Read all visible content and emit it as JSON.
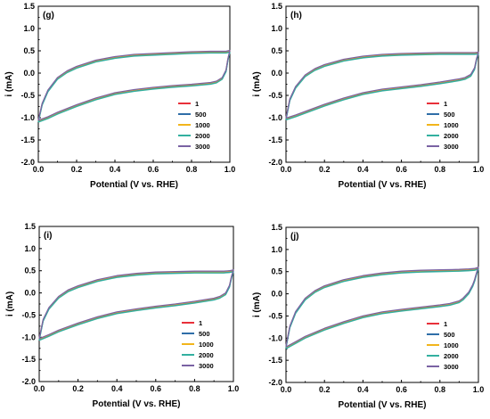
{
  "colors": {
    "1": "#e8303a",
    "500": "#2f6ea8",
    "1000": "#f2b51c",
    "2000": "#33b0a0",
    "3000": "#7a62a3"
  },
  "chart_data": [
    {
      "type": "line",
      "panel_label": "(g)",
      "xlabel": "Potential (V vs. RHE)",
      "ylabel": "i (mA)",
      "xlim": [
        0,
        1.0
      ],
      "ylim": [
        -2.0,
        1.5
      ],
      "xticks": [
        "0.0",
        "0.2",
        "0.4",
        "0.6",
        "0.8",
        "1.0"
      ],
      "yticks": [
        "-2.0",
        "-1.5",
        "-1.0",
        "-0.5",
        "0.0",
        "0.5",
        "1.0",
        "1.5"
      ],
      "legend_position": "lower-right",
      "grid": false,
      "series": [
        {
          "name": "1"
        },
        {
          "name": "500"
        },
        {
          "name": "1000"
        },
        {
          "name": "2000"
        },
        {
          "name": "3000"
        }
      ],
      "anodic_branch": {
        "x": [
          0.0,
          0.02,
          0.05,
          0.1,
          0.15,
          0.2,
          0.3,
          0.4,
          0.5,
          0.6,
          0.7,
          0.8,
          0.9,
          0.95,
          0.98,
          1.0
        ],
        "y": [
          -1.08,
          -0.7,
          -0.4,
          -0.12,
          0.03,
          0.13,
          0.27,
          0.35,
          0.4,
          0.42,
          0.44,
          0.46,
          0.47,
          0.47,
          0.47,
          0.49
        ]
      },
      "cathodic_branch": {
        "x": [
          1.0,
          0.99,
          0.98,
          0.96,
          0.93,
          0.9,
          0.8,
          0.7,
          0.6,
          0.5,
          0.4,
          0.3,
          0.2,
          0.1,
          0.05,
          0.0
        ],
        "y": [
          0.49,
          0.3,
          0.05,
          -0.12,
          -0.2,
          -0.23,
          -0.27,
          -0.3,
          -0.34,
          -0.39,
          -0.46,
          -0.58,
          -0.73,
          -0.9,
          -1.0,
          -1.08
        ]
      }
    },
    {
      "type": "line",
      "panel_label": "(h)",
      "xlabel": "Potential (V vs. RHE)",
      "ylabel": "i (mA)",
      "xlim": [
        0,
        1.0
      ],
      "ylim": [
        -2.0,
        1.5
      ],
      "xticks": [
        "0.0",
        "0.2",
        "0.4",
        "0.6",
        "0.8",
        "1.0"
      ],
      "yticks": [
        "-2.0",
        "-1.5",
        "-1.0",
        "-0.5",
        "0.0",
        "0.5",
        "1.0",
        "1.5"
      ],
      "legend_position": "lower-right",
      "grid": false,
      "series": [
        {
          "name": "1"
        },
        {
          "name": "500"
        },
        {
          "name": "1000"
        },
        {
          "name": "2000"
        },
        {
          "name": "3000"
        }
      ],
      "anodic_branch": {
        "x": [
          0.0,
          0.02,
          0.05,
          0.1,
          0.15,
          0.2,
          0.3,
          0.4,
          0.5,
          0.6,
          0.7,
          0.8,
          0.9,
          0.95,
          0.98,
          1.0
        ],
        "y": [
          -1.03,
          -0.6,
          -0.32,
          -0.06,
          0.08,
          0.17,
          0.29,
          0.36,
          0.4,
          0.42,
          0.43,
          0.44,
          0.44,
          0.44,
          0.44,
          0.45
        ]
      },
      "cathodic_branch": {
        "x": [
          1.0,
          0.99,
          0.98,
          0.96,
          0.93,
          0.9,
          0.8,
          0.7,
          0.6,
          0.5,
          0.4,
          0.3,
          0.2,
          0.1,
          0.05,
          0.0
        ],
        "y": [
          0.45,
          0.3,
          0.1,
          -0.05,
          -0.12,
          -0.15,
          -0.22,
          -0.28,
          -0.33,
          -0.38,
          -0.46,
          -0.58,
          -0.72,
          -0.88,
          -0.96,
          -1.03
        ]
      }
    },
    {
      "type": "line",
      "panel_label": "(i)",
      "xlabel": "Potential (V vs. RHE)",
      "ylabel": "i (mA)",
      "xlim": [
        0,
        1.0
      ],
      "ylim": [
        -2.0,
        1.5
      ],
      "xticks": [
        "0.0",
        "0.2",
        "0.4",
        "0.6",
        "0.8",
        "1.0"
      ],
      "yticks": [
        "-2.0",
        "-1.5",
        "-1.0",
        "-0.5",
        "0.0",
        "0.5",
        "1.0",
        "1.5"
      ],
      "legend_position": "lower-right",
      "grid": false,
      "series": [
        {
          "name": "1"
        },
        {
          "name": "500"
        },
        {
          "name": "1000"
        },
        {
          "name": "2000"
        },
        {
          "name": "3000"
        }
      ],
      "anodic_branch": {
        "x": [
          0.0,
          0.02,
          0.05,
          0.1,
          0.15,
          0.2,
          0.3,
          0.4,
          0.5,
          0.6,
          0.7,
          0.8,
          0.9,
          0.95,
          0.98,
          1.0
        ],
        "y": [
          -1.05,
          -0.62,
          -0.35,
          -0.1,
          0.05,
          0.14,
          0.28,
          0.37,
          0.42,
          0.45,
          0.46,
          0.47,
          0.47,
          0.47,
          0.48,
          0.5
        ]
      },
      "cathodic_branch": {
        "x": [
          1.0,
          0.99,
          0.98,
          0.96,
          0.93,
          0.9,
          0.8,
          0.7,
          0.6,
          0.5,
          0.4,
          0.3,
          0.2,
          0.1,
          0.05,
          0.0
        ],
        "y": [
          0.5,
          0.35,
          0.15,
          -0.02,
          -0.1,
          -0.14,
          -0.21,
          -0.27,
          -0.32,
          -0.38,
          -0.45,
          -0.56,
          -0.7,
          -0.86,
          -0.96,
          -1.05
        ]
      }
    },
    {
      "type": "line",
      "panel_label": "(j)",
      "xlabel": "Potential (V vs. RHE)",
      "ylabel": "i (mA)",
      "xlim": [
        0,
        1.0
      ],
      "ylim": [
        -2.0,
        1.5
      ],
      "xticks": [
        "0.0",
        "0.2",
        "0.4",
        "0.6",
        "0.8",
        "1.0"
      ],
      "yticks": [
        "-2.0",
        "-1.5",
        "-1.0",
        "-0.5",
        "0.0",
        "0.5",
        "1.0",
        "1.5"
      ],
      "legend_position": "lower-right",
      "grid": false,
      "series": [
        {
          "name": "1"
        },
        {
          "name": "500"
        },
        {
          "name": "1000"
        },
        {
          "name": "2000"
        },
        {
          "name": "3000"
        }
      ],
      "anodic_branch": {
        "x": [
          0.0,
          0.02,
          0.05,
          0.1,
          0.15,
          0.2,
          0.3,
          0.4,
          0.5,
          0.6,
          0.7,
          0.8,
          0.9,
          0.95,
          0.98,
          1.0
        ],
        "y": [
          -1.2,
          -0.75,
          -0.42,
          -0.12,
          0.05,
          0.16,
          0.3,
          0.39,
          0.45,
          0.49,
          0.51,
          0.52,
          0.53,
          0.54,
          0.55,
          0.58
        ]
      },
      "cathodic_branch": {
        "x": [
          1.0,
          0.99,
          0.98,
          0.97,
          0.95,
          0.92,
          0.9,
          0.85,
          0.8,
          0.7,
          0.6,
          0.5,
          0.4,
          0.3,
          0.2,
          0.1,
          0.05,
          0.0
        ],
        "y": [
          0.58,
          0.45,
          0.3,
          0.18,
          0.02,
          -0.12,
          -0.18,
          -0.24,
          -0.27,
          -0.32,
          -0.37,
          -0.43,
          -0.52,
          -0.65,
          -0.8,
          -0.98,
          -1.1,
          -1.22
        ]
      }
    }
  ]
}
